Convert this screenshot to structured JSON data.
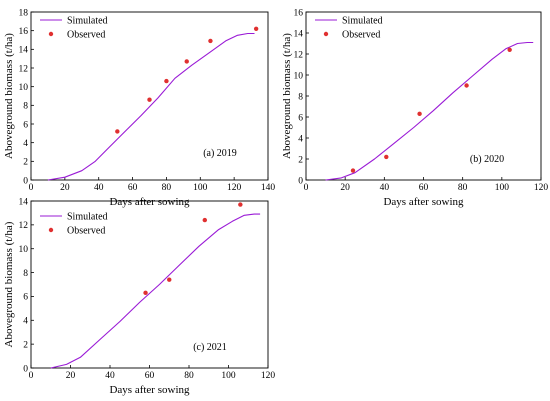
{
  "figure": {
    "background": "#ffffff",
    "line_color": "#9a1bd6",
    "point_color": "#e03030",
    "axis_color": "#000000"
  },
  "chart_data": [
    {
      "type": "line",
      "panel_label": "(a) 2019",
      "xlabel": "Days after sowing",
      "ylabel": "Aboveground biomass (t/ha)",
      "xlim": [
        0,
        140
      ],
      "ylim": [
        0,
        18
      ],
      "xticks": [
        0,
        20,
        40,
        60,
        80,
        100,
        120,
        140
      ],
      "yticks": [
        0,
        2,
        4,
        6,
        8,
        10,
        12,
        14,
        16,
        18
      ],
      "legend": {
        "position": "top-left",
        "entries": [
          "Simulated",
          "Observed"
        ]
      },
      "series": [
        {
          "name": "Simulated",
          "kind": "line",
          "x": [
            10,
            20,
            30,
            38,
            45,
            55,
            65,
            75,
            85,
            95,
            105,
            115,
            122,
            128,
            132
          ],
          "y": [
            0,
            0.3,
            1.0,
            2.0,
            3.3,
            5.1,
            6.9,
            8.8,
            10.9,
            12.3,
            13.6,
            14.9,
            15.5,
            15.7,
            15.7
          ]
        },
        {
          "name": "Observed",
          "kind": "scatter",
          "x": [
            51,
            70,
            80,
            92,
            106,
            133
          ],
          "y": [
            5.2,
            8.6,
            10.6,
            12.7,
            14.9,
            16.2
          ]
        }
      ]
    },
    {
      "type": "line",
      "panel_label": "(b) 2020",
      "xlabel": "Days after sowing",
      "ylabel": "Aboveground biomass (t/ha)",
      "xlim": [
        0,
        120
      ],
      "ylim": [
        0,
        16
      ],
      "xticks": [
        0,
        20,
        40,
        60,
        80,
        100,
        120
      ],
      "yticks": [
        0,
        2,
        4,
        6,
        8,
        10,
        12,
        14,
        16
      ],
      "legend": {
        "position": "top-left",
        "entries": [
          "Simulated",
          "Observed"
        ]
      },
      "series": [
        {
          "name": "Simulated",
          "kind": "line",
          "x": [
            10,
            18,
            25,
            35,
            45,
            55,
            65,
            75,
            85,
            95,
            102,
            108,
            113,
            116
          ],
          "y": [
            0,
            0.2,
            0.7,
            2.0,
            3.5,
            5.0,
            6.6,
            8.3,
            9.9,
            11.5,
            12.5,
            13.0,
            13.1,
            13.1
          ]
        },
        {
          "name": "Observed",
          "kind": "scatter",
          "x": [
            24,
            41,
            58,
            82,
            104
          ],
          "y": [
            0.9,
            2.2,
            6.3,
            9.0,
            12.4
          ]
        }
      ]
    },
    {
      "type": "line",
      "panel_label": "(c) 2021",
      "xlabel": "Days after sowing",
      "ylabel": "Aboveground biomass (t/ha)",
      "xlim": [
        0,
        120
      ],
      "ylim": [
        0,
        14
      ],
      "xticks": [
        0,
        20,
        40,
        60,
        80,
        100,
        120
      ],
      "yticks": [
        0,
        2,
        4,
        6,
        8,
        10,
        12,
        14
      ],
      "legend": {
        "position": "top-left",
        "entries": [
          "Simulated",
          "Observed"
        ]
      },
      "series": [
        {
          "name": "Simulated",
          "kind": "line",
          "x": [
            10,
            18,
            25,
            35,
            45,
            55,
            65,
            75,
            85,
            95,
            102,
            108,
            113,
            116
          ],
          "y": [
            0,
            0.3,
            0.9,
            2.4,
            3.9,
            5.5,
            7.0,
            8.6,
            10.2,
            11.6,
            12.3,
            12.8,
            12.9,
            12.9
          ]
        },
        {
          "name": "Observed",
          "kind": "scatter",
          "x": [
            58,
            70,
            88,
            106
          ],
          "y": [
            6.3,
            7.4,
            12.4,
            13.7
          ]
        }
      ]
    }
  ]
}
